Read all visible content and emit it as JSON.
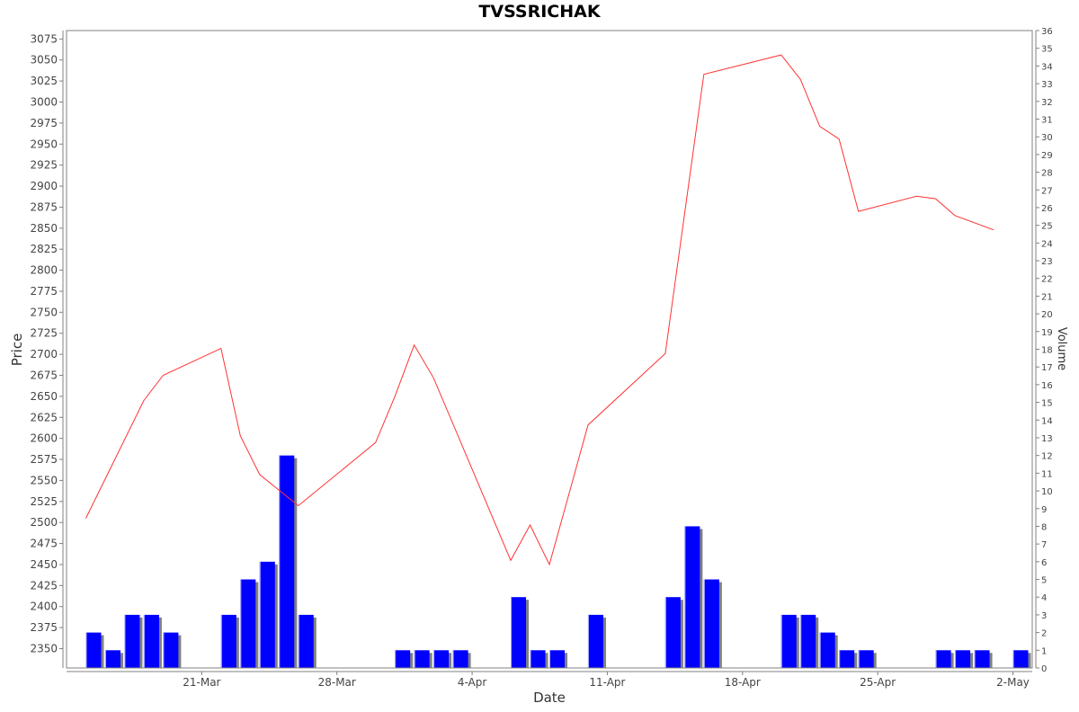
{
  "chart_data": {
    "type": "line+bar",
    "title": "TVSSRICHAK",
    "xlabel": "Date",
    "ylabel": "Price",
    "y2label": "Volume",
    "grid": false,
    "legend": "none",
    "colors": {
      "price_line": "#ff3333",
      "volume_bar": "#0000ff",
      "volume_shadow": "#808080"
    },
    "x_range": [
      "2024-03-14",
      "2024-05-03"
    ],
    "x_ticks": [
      {
        "date": "2024-03-21",
        "label": "21-Mar"
      },
      {
        "date": "2024-03-28",
        "label": "28-Mar"
      },
      {
        "date": "2024-04-04",
        "label": "4-Apr"
      },
      {
        "date": "2024-04-11",
        "label": "11-Apr"
      },
      {
        "date": "2024-04-18",
        "label": "18-Apr"
      },
      {
        "date": "2024-04-25",
        "label": "25-Apr"
      },
      {
        "date": "2024-05-02",
        "label": "2-May"
      }
    ],
    "price_axis": {
      "range": [
        2327,
        3085
      ],
      "ticks": [
        2350,
        2375,
        2400,
        2425,
        2450,
        2475,
        2500,
        2525,
        2550,
        2575,
        2600,
        2625,
        2650,
        2675,
        2700,
        2725,
        2750,
        2775,
        2800,
        2825,
        2850,
        2875,
        2900,
        2925,
        2950,
        2975,
        3000,
        3025,
        3050,
        3075
      ]
    },
    "volume_axis": {
      "range": [
        0,
        36
      ],
      "ticks": [
        0,
        1,
        2,
        3,
        4,
        5,
        6,
        7,
        8,
        9,
        10,
        11,
        12,
        13,
        14,
        15,
        16,
        17,
        18,
        19,
        20,
        21,
        22,
        23,
        24,
        25,
        26,
        27,
        28,
        29,
        30,
        31,
        32,
        33,
        34,
        35,
        36
      ]
    },
    "series": [
      {
        "name": "Price",
        "kind": "line",
        "points": [
          [
            "2024-03-15",
            2505
          ],
          [
            "2024-03-18",
            2645
          ],
          [
            "2024-03-19",
            2675
          ],
          [
            "2024-03-22",
            2707
          ],
          [
            "2024-03-23",
            2603
          ],
          [
            "2024-03-24",
            2557
          ],
          [
            "2024-03-26",
            2520
          ],
          [
            "2024-03-30",
            2595
          ],
          [
            "2024-03-31",
            2650
          ],
          [
            "2024-04-01",
            2711
          ],
          [
            "2024-04-02",
            2672
          ],
          [
            "2024-04-06",
            2455
          ],
          [
            "2024-04-07",
            2497
          ],
          [
            "2024-04-08",
            2450
          ],
          [
            "2024-04-10",
            2616
          ],
          [
            "2024-04-14",
            2701
          ],
          [
            "2024-04-16",
            3033
          ],
          [
            "2024-04-20",
            3056
          ],
          [
            "2024-04-21",
            3027
          ],
          [
            "2024-04-22",
            2971
          ],
          [
            "2024-04-23",
            2956
          ],
          [
            "2024-04-24",
            2870
          ],
          [
            "2024-04-27",
            2888
          ],
          [
            "2024-04-28",
            2885
          ],
          [
            "2024-04-29",
            2865
          ],
          [
            "2024-05-01",
            2848
          ]
        ]
      },
      {
        "name": "Volume",
        "kind": "bar",
        "points": [
          [
            "2024-03-15",
            2
          ],
          [
            "2024-03-16",
            1
          ],
          [
            "2024-03-17",
            3
          ],
          [
            "2024-03-18",
            3
          ],
          [
            "2024-03-19",
            2
          ],
          [
            "2024-03-22",
            3
          ],
          [
            "2024-03-23",
            5
          ],
          [
            "2024-03-24",
            6
          ],
          [
            "2024-03-25",
            12
          ],
          [
            "2024-03-26",
            3
          ],
          [
            "2024-03-31",
            1
          ],
          [
            "2024-04-01",
            1
          ],
          [
            "2024-04-02",
            1
          ],
          [
            "2024-04-03",
            1
          ],
          [
            "2024-04-06",
            4
          ],
          [
            "2024-04-07",
            1
          ],
          [
            "2024-04-08",
            1
          ],
          [
            "2024-04-10",
            3
          ],
          [
            "2024-04-14",
            4
          ],
          [
            "2024-04-15",
            8
          ],
          [
            "2024-04-16",
            5
          ],
          [
            "2024-04-20",
            3
          ],
          [
            "2024-04-21",
            3
          ],
          [
            "2024-04-22",
            2
          ],
          [
            "2024-04-23",
            1
          ],
          [
            "2024-04-24",
            1
          ],
          [
            "2024-04-28",
            1
          ],
          [
            "2024-04-29",
            1
          ],
          [
            "2024-04-30",
            1
          ],
          [
            "2024-05-02",
            1
          ]
        ]
      }
    ]
  }
}
